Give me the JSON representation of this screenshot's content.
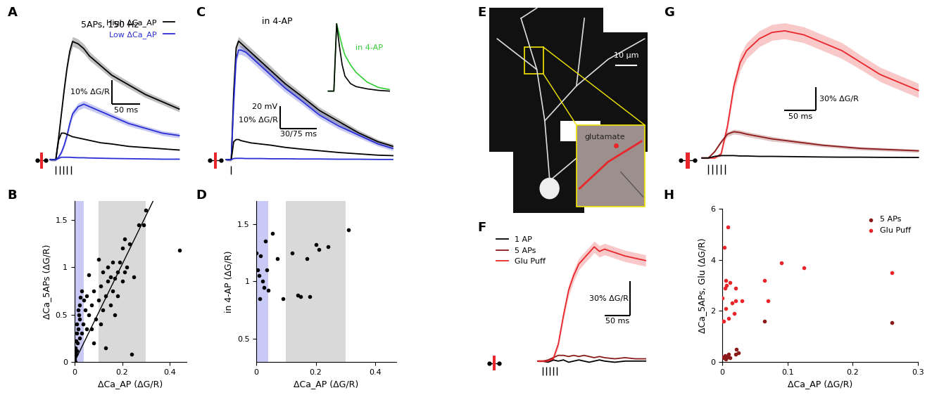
{
  "chart_data": [
    {
      "type": "line",
      "panel": "A",
      "tick_labels": false,
      "legend": "upper right",
      "annotations": [
        "5APs, 150 Hz"
      ],
      "stimuli": [
        0,
        6.7,
        13.3,
        20,
        26.7
      ],
      "scalebar": {
        "x": 50,
        "x_label": "50 ms",
        "y": 10,
        "y_label": "10% ΔG/R"
      },
      "x": [
        -10,
        0,
        5,
        10,
        15,
        20,
        25,
        30,
        40,
        50,
        60,
        80,
        100,
        130,
        160,
        190,
        220
      ],
      "series": [
        {
          "name": "High ΔCa_AP",
          "color": "#000000",
          "values": [
            0,
            0,
            9,
            19,
            29,
            38,
            45,
            49,
            48,
            46,
            43,
            39,
            35,
            31,
            27,
            24,
            21
          ],
          "error": [
            0.5,
            0.5,
            1,
            1,
            1.5,
            1.5,
            2,
            2,
            2,
            2,
            1.8,
            1.6,
            1.5,
            1.4,
            1.3,
            1.2,
            1.2
          ]
        },
        {
          "name": "Low ΔCa_AP",
          "color": "#2a2fd4",
          "values": [
            0,
            0,
            1,
            3,
            6,
            10,
            15,
            19,
            22,
            23,
            22,
            20,
            18,
            15,
            13,
            11,
            10
          ],
          "error": [
            0.5,
            0.5,
            0.5,
            0.8,
            1,
            1.2,
            1.5,
            1.5,
            1.5,
            1.5,
            1.4,
            1.3,
            1.2,
            1.1,
            1,
            1,
            1
          ]
        },
        {
          "color": "#000000",
          "values": [
            0,
            0,
            8,
            11,
            11,
            10.5,
            10,
            9.5,
            9,
            8.5,
            8,
            7,
            6.5,
            5.5,
            5,
            4.5,
            4
          ]
        },
        {
          "color": "#2a2fd4",
          "values": [
            0,
            0,
            0.5,
            1,
            1,
            1,
            1,
            0.9,
            0.8,
            0.8,
            0.7,
            0.6,
            0.5,
            0.4,
            0.3,
            0.2,
            0.2
          ]
        }
      ]
    },
    {
      "type": "scatter",
      "panel": "B",
      "xlabel": "ΔCa_AP (ΔG/R)",
      "ylabel": "ΔCa_5APs (ΔG/R)",
      "xlim": [
        0,
        0.47
      ],
      "xticks": [
        0,
        0.2,
        0.4
      ],
      "ylim": [
        0,
        1.7
      ],
      "yticks": [
        0,
        0.5,
        1,
        1.5
      ],
      "regions": [
        {
          "x": [
            0,
            0.04
          ],
          "color": "#c9c9f5"
        },
        {
          "x": [
            0.1,
            0.3
          ],
          "color": "#d9d9d9"
        }
      ],
      "fit": {
        "x": [
          0,
          0.33
        ],
        "y": [
          0,
          1.7
        ],
        "color": "#000000"
      },
      "series": [
        {
          "color": "#000000",
          "x": [
            0.0,
            0.0,
            0.002,
            0.003,
            0.004,
            0.005,
            0.006,
            0.008,
            0.01,
            0.01,
            0.012,
            0.015,
            0.015,
            0.018,
            0.02,
            0.02,
            0.022,
            0.025,
            0.03,
            0.03,
            0.035,
            0.04,
            0.045,
            0.05,
            0.05,
            0.06,
            0.06,
            0.07,
            0.07,
            0.08,
            0.08,
            0.09,
            0.1,
            0.1,
            0.11,
            0.11,
            0.12,
            0.12,
            0.13,
            0.13,
            0.14,
            0.14,
            0.15,
            0.15,
            0.16,
            0.16,
            0.17,
            0.17,
            0.18,
            0.18,
            0.19,
            0.2,
            0.2,
            0.21,
            0.21,
            0.22,
            0.23,
            0.24,
            0.25,
            0.27,
            0.29,
            0.3,
            0.44
          ],
          "y": [
            0.02,
            0.05,
            0.1,
            0.0,
            0.15,
            0.08,
            0.22,
            0.3,
            0.12,
            0.4,
            0.2,
            0.55,
            0.35,
            0.5,
            0.25,
            0.6,
            0.45,
            0.68,
            0.3,
            0.75,
            0.4,
            0.65,
            0.55,
            0.35,
            0.7,
            0.5,
            0.92,
            0.35,
            0.6,
            0.75,
            0.2,
            0.45,
            0.65,
            1.08,
            0.4,
            0.8,
            0.55,
            0.95,
            0.7,
            0.15,
            0.85,
            1.0,
            0.6,
            0.9,
            0.75,
            1.05,
            0.88,
            0.5,
            0.95,
            0.7,
            1.05,
            1.2,
            0.85,
            1.3,
            0.95,
            1.0,
            1.25,
            0.08,
            0.9,
            1.45,
            1.45,
            1.6,
            1.18
          ]
        }
      ]
    },
    {
      "type": "line",
      "panel": "C",
      "tick_labels": false,
      "annotations": [
        "in 4-AP"
      ],
      "stimuli": [
        0
      ],
      "scalebar": {
        "x": 75,
        "x_label": "30/75 ms",
        "y": 10,
        "y_label": "10% ΔG/R",
        "y_label_2": "20 mV"
      },
      "x": [
        -10,
        0,
        5,
        10,
        15,
        20,
        30,
        40,
        60,
        80,
        110,
        140,
        180,
        220,
        260,
        300,
        330
      ],
      "series": [
        {
          "color": "#000000",
          "values": [
            0,
            0,
            30,
            50,
            53,
            52,
            50,
            48,
            44,
            40,
            34,
            29,
            22,
            17,
            12,
            8,
            6
          ],
          "error": [
            0.5,
            0.5,
            1.5,
            2,
            2,
            2,
            2,
            2,
            2,
            2,
            1.8,
            1.6,
            1.5,
            1.4,
            1.2,
            1,
            1
          ]
        },
        {
          "color": "#2a2fd4",
          "values": [
            0,
            0,
            25,
            45,
            49,
            49,
            48,
            46,
            42,
            38,
            32,
            27,
            20,
            15,
            11,
            7,
            5
          ],
          "error": [
            0.5,
            0.5,
            1.5,
            2,
            2,
            2,
            2,
            2,
            2,
            2,
            1.8,
            1.6,
            1.5,
            1.4,
            1.2,
            1,
            1
          ]
        },
        {
          "color": "#000000",
          "values": [
            0,
            0,
            8,
            9,
            9,
            8.5,
            8,
            7.5,
            7,
            6.5,
            5.5,
            4.8,
            4,
            3.2,
            2.6,
            2,
            1.8
          ]
        },
        {
          "color": "#2a2fd4",
          "values": [
            0,
            0,
            0.5,
            0.6,
            0.6,
            0.6,
            0.5,
            0.5,
            0.5,
            0.4,
            0.4,
            0.3,
            0.3,
            0.2,
            0.2,
            0.1,
            0.1
          ]
        }
      ],
      "inset": {
        "x": [
          -2,
          0,
          1,
          2,
          3,
          4,
          6,
          8,
          12,
          16,
          20
        ],
        "series": [
          {
            "name": "in 4-AP",
            "color": "#33cc33",
            "values": [
              0,
              0,
              90,
              75,
              60,
              48,
              35,
              25,
              12,
              5,
              2
            ]
          },
          {
            "color": "#000000",
            "values": [
              0,
              0,
              90,
              60,
              35,
              20,
              10,
              6,
              3,
              1,
              0
            ]
          }
        ]
      }
    },
    {
      "type": "scatter",
      "panel": "D",
      "xlabel": "ΔCa_AP (ΔG/R)",
      "ylabel": "in 4-AP (ΔG/R)",
      "xlim": [
        0,
        0.47
      ],
      "xticks": [
        0,
        0.2,
        0.4
      ],
      "ylim": [
        0.3,
        1.7
      ],
      "yticks": [
        0.5,
        1,
        1.5
      ],
      "regions": [
        {
          "x": [
            0,
            0.04
          ],
          "color": "#c9c9f5"
        },
        {
          "x": [
            0.1,
            0.3
          ],
          "color": "#d9d9d9"
        }
      ],
      "series": [
        {
          "color": "#000000",
          "x": [
            0.0,
            0.005,
            0.01,
            0.012,
            0.015,
            0.02,
            0.025,
            0.03,
            0.035,
            0.04,
            0.055,
            0.07,
            0.09,
            0.12,
            0.14,
            0.15,
            0.17,
            0.18,
            0.2,
            0.21,
            0.24,
            0.31
          ],
          "y": [
            1.25,
            1.1,
            1.05,
            0.85,
            1.22,
            1.0,
            0.95,
            1.35,
            1.1,
            0.92,
            1.42,
            1.2,
            0.85,
            1.25,
            0.88,
            0.87,
            1.2,
            0.87,
            1.32,
            1.28,
            1.3,
            1.45
          ]
        }
      ]
    },
    {
      "type": "image",
      "panel": "E",
      "tick_labels": false,
      "annotations": [
        "10 μm",
        "glutamate"
      ]
    },
    {
      "type": "line",
      "panel": "F",
      "tick_labels": false,
      "legend": "upper left",
      "stimuli": [
        0,
        6.7,
        13.3,
        20,
        26.7
      ],
      "scalebar": {
        "x": 50,
        "x_label": "50 ms",
        "y": 30,
        "y_label": "30% ΔG/R"
      },
      "x": [
        -10,
        0,
        10,
        20,
        30,
        40,
        50,
        60,
        70,
        80,
        90,
        100,
        110,
        120,
        140,
        160,
        180,
        200
      ],
      "series": [
        {
          "name": "1 AP",
          "color": "#000000",
          "values": [
            0,
            0,
            -1,
            1,
            0,
            1,
            -1,
            0,
            1,
            0,
            -1,
            0,
            1,
            0,
            -1,
            0,
            0,
            0
          ]
        },
        {
          "name": "5 APs",
          "color": "#8b1a1a",
          "values": [
            0,
            0,
            1,
            3,
            5,
            5,
            4,
            5,
            4,
            5,
            4,
            3,
            4,
            3,
            2,
            3,
            2,
            2
          ]
        },
        {
          "name": "Glu Puff",
          "color": "#e8262b",
          "values": [
            0,
            0,
            0,
            2,
            15,
            40,
            62,
            75,
            85,
            90,
            95,
            100,
            96,
            98,
            95,
            92,
            90,
            88
          ],
          "error": [
            1,
            1,
            1,
            2,
            3,
            4,
            5,
            5,
            5,
            5,
            5,
            5,
            5,
            5,
            5,
            5,
            5,
            5
          ]
        }
      ]
    },
    {
      "type": "line",
      "panel": "G",
      "tick_labels": false,
      "stimuli": [
        0,
        6.7,
        13.3,
        20,
        26.7
      ],
      "scalebar": {
        "x": 50,
        "x_label": "50 ms",
        "y": 30,
        "y_label": "30% ΔG/R"
      },
      "x": [
        -10,
        0,
        10,
        20,
        30,
        40,
        50,
        60,
        80,
        100,
        120,
        150,
        180,
        210,
        240,
        270,
        300,
        330
      ],
      "series": [
        {
          "color": "#e8262b",
          "values": [
            0,
            0,
            0,
            5,
            40,
            90,
            120,
            135,
            150,
            158,
            160,
            155,
            145,
            135,
            120,
            105,
            95,
            85
          ],
          "error": [
            1,
            1,
            1,
            3,
            6,
            8,
            10,
            10,
            10,
            10,
            10,
            10,
            10,
            10,
            9,
            9,
            9,
            9
          ]
        },
        {
          "color": "#8b1a1a",
          "values": [
            0,
            0,
            8,
            20,
            30,
            33,
            32,
            30,
            27,
            24,
            22,
            19,
            16,
            14,
            12,
            11,
            10,
            9
          ],
          "error": [
            0.5,
            0.5,
            1,
            2,
            3,
            3,
            3,
            3,
            3,
            3,
            2.5,
            2.5,
            2,
            2,
            2,
            2,
            2,
            2
          ]
        },
        {
          "color": "#000000",
          "values": [
            0,
            0,
            2,
            3,
            3,
            3,
            2.5,
            2.5,
            2,
            2,
            1.8,
            1.5,
            1.2,
            1,
            1,
            0.8,
            0.7,
            0.6
          ]
        }
      ]
    },
    {
      "type": "scatter",
      "panel": "H",
      "legend": "upper right",
      "xlabel": "ΔCa_AP (ΔG/R)",
      "ylabel": "ΔCa_5APs, Glu (ΔG/R)",
      "xlim": [
        0,
        0.3
      ],
      "xticks": [
        0,
        0.1,
        0.2,
        0.3
      ],
      "ylim": [
        0,
        6
      ],
      "yticks": [
        0,
        2,
        4,
        6
      ],
      "series": [
        {
          "name": "5 APs",
          "color": "#8b1a1a",
          "x": [
            0.0,
            0.002,
            0.004,
            0.005,
            0.008,
            0.01,
            0.012,
            0.02,
            0.022,
            0.025,
            0.065,
            0.26
          ],
          "y": [
            0.2,
            0.15,
            0.25,
            0.1,
            0.2,
            0.3,
            0.15,
            0.3,
            0.5,
            0.35,
            1.6,
            1.55
          ]
        },
        {
          "name": "Glu Puff",
          "color": "#e8262b",
          "x": [
            0.0,
            0.0,
            0.002,
            0.003,
            0.004,
            0.005,
            0.005,
            0.006,
            0.008,
            0.01,
            0.012,
            0.015,
            0.018,
            0.02,
            0.02,
            0.03,
            0.065,
            0.07,
            0.09,
            0.125,
            0.26
          ],
          "y": [
            2.5,
            1.6,
            1.6,
            4.5,
            2.9,
            2.1,
            3.2,
            3.0,
            5.3,
            1.7,
            3.1,
            2.3,
            1.9,
            2.4,
            2.9,
            2.4,
            3.2,
            2.4,
            3.9,
            3.7,
            3.5
          ]
        }
      ]
    }
  ]
}
